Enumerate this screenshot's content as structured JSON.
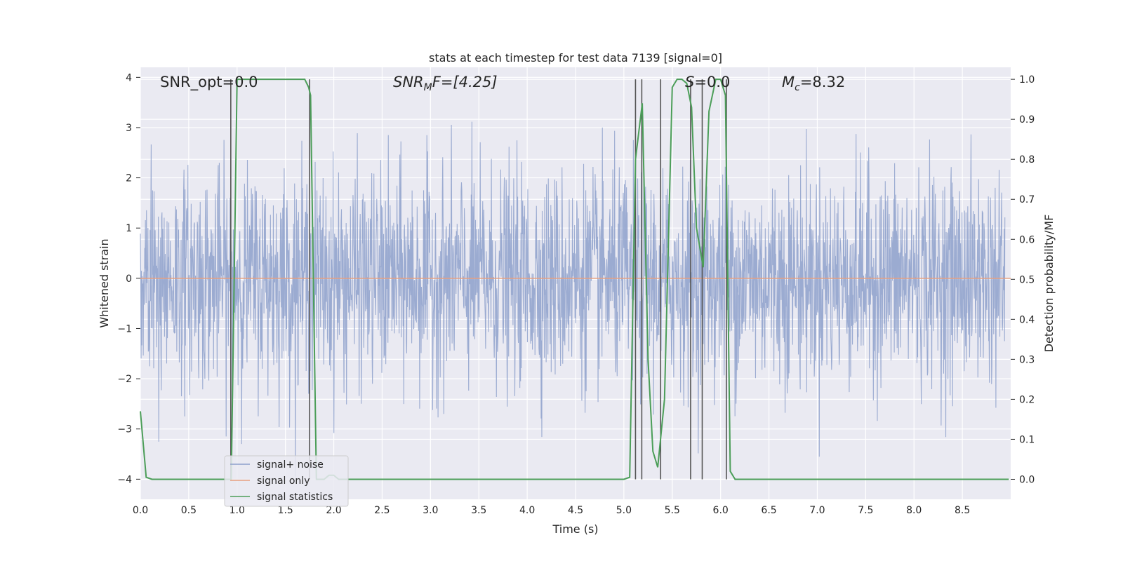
{
  "chart_data": {
    "type": "line",
    "title": "stats at each timestep for test data 7139 [signal=0]",
    "xlabel": "Time (s)",
    "ylabel_left": "Whitened strain",
    "ylabel_right": "Detection probability/MF",
    "xlim": [
      0.0,
      9.0
    ],
    "ylim_left": [
      -4.4,
      4.2
    ],
    "ylim_right": [
      -0.05,
      1.03
    ],
    "x_ticks": [
      "0.0",
      "0.5",
      "1.0",
      "1.5",
      "2.0",
      "2.5",
      "3.0",
      "3.5",
      "4.0",
      "4.5",
      "5.0",
      "5.5",
      "6.0",
      "6.5",
      "7.0",
      "7.5",
      "8.0",
      "8.5"
    ],
    "y_ticks_left": [
      "−4",
      "−3",
      "−2",
      "−1",
      "0",
      "1",
      "2",
      "3",
      "4"
    ],
    "y_ticks_right": [
      "0.0",
      "0.1",
      "0.2",
      "0.3",
      "0.4",
      "0.5",
      "0.6",
      "0.7",
      "0.8",
      "0.9",
      "1.0"
    ],
    "annotations": {
      "snr_opt": "SNR_opt=0.0",
      "snr_mf_base": "SNR",
      "snr_mf_sub": "M",
      "snr_mf_rest": "F=[4.25]",
      "s_italic": "S",
      "s_rest": "=0.0",
      "mc_base": "M",
      "mc_sub": "c",
      "mc_rest": "=8.32"
    },
    "colors": {
      "noise": "#8da0cb",
      "signal": "#e8a07f",
      "stat": "#4c9e59",
      "vlines": "#555555",
      "plot_bg": "#eaeaf2",
      "grid": "#ffffff"
    },
    "series": [
      {
        "name": "signal+ noise",
        "axis": "left",
        "description_values": "whitened strain noise, roughly Gaussian with std ~1, samples spanning about -4 to 4"
      },
      {
        "name": "signal only",
        "axis": "left",
        "x": [
          0.0,
          9.0
        ],
        "y": [
          0.0,
          0.0
        ]
      },
      {
        "name": "signal statistics",
        "axis": "right",
        "x": [
          0.0,
          0.06,
          0.12,
          0.9,
          0.94,
          1.0,
          1.06,
          1.7,
          1.74,
          1.76,
          1.82,
          1.9,
          1.95,
          2.0,
          2.05,
          5.0,
          5.06,
          5.12,
          5.19,
          5.25,
          5.3,
          5.35,
          5.42,
          5.5,
          5.55,
          5.6,
          5.65,
          5.7,
          5.75,
          5.82,
          5.88,
          5.95,
          6.0,
          6.05,
          6.1,
          6.15,
          6.2,
          8.98
        ],
        "y": [
          0.17,
          0.005,
          0.0,
          0.0,
          0.0,
          1.0,
          1.0,
          1.0,
          0.98,
          0.96,
          0.0,
          0.0,
          0.01,
          0.01,
          0.0,
          0.0,
          0.005,
          0.8,
          0.94,
          0.3,
          0.07,
          0.03,
          0.2,
          0.98,
          1.0,
          1.0,
          0.99,
          0.93,
          0.63,
          0.53,
          0.92,
          1.0,
          1.0,
          0.96,
          0.02,
          0.0,
          0.0,
          0.0
        ]
      }
    ],
    "vertical_lines_x": [
      0.935,
      1.75,
      5.12,
      5.185,
      5.38,
      5.69,
      5.81,
      6.06
    ],
    "legend": {
      "position": "lower-left",
      "entries": [
        "signal+ noise",
        "signal only",
        "signal statistics"
      ]
    },
    "grid": true
  }
}
